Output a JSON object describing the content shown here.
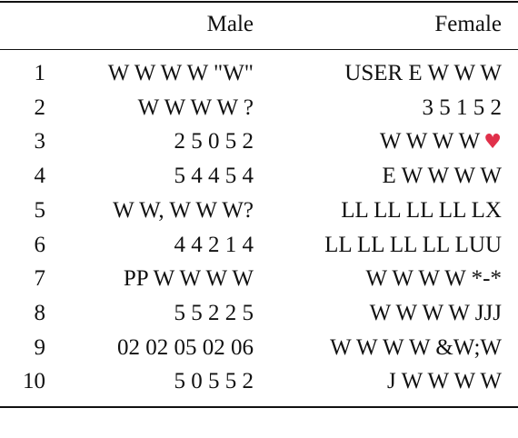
{
  "table": {
    "headers": {
      "index": "",
      "male": "Male",
      "female": "Female"
    },
    "rows": [
      {
        "index": "1",
        "male": "W W W W \"W\"",
        "female": "USER E W W W",
        "female_emoji": ""
      },
      {
        "index": "2",
        "male": "W W W W ?",
        "female": "3 5 1 5 2",
        "female_emoji": ""
      },
      {
        "index": "3",
        "male": "2 5 0 5 2",
        "female": "W W W W",
        "female_emoji": "♥"
      },
      {
        "index": "4",
        "male": "5 4 4 5 4",
        "female": "E W W W W",
        "female_emoji": ""
      },
      {
        "index": "5",
        "male": "W W, W W W?",
        "female": "LL LL LL LL LX",
        "female_emoji": ""
      },
      {
        "index": "6",
        "male": "4 4 2 1 4",
        "female": "LL LL LL LL LUU",
        "female_emoji": ""
      },
      {
        "index": "7",
        "male": "PP W W W W",
        "female": "W W W W *-*",
        "female_emoji": ""
      },
      {
        "index": "8",
        "male": "5 5 2 2 5",
        "female": "W W W W JJJ",
        "female_emoji": ""
      },
      {
        "index": "9",
        "male": "02 02 05 02 06",
        "female": "W W W W &W;W",
        "female_emoji": ""
      },
      {
        "index": "10",
        "male": "5 0 5 5 2",
        "female": "J W W W W",
        "female_emoji": ""
      }
    ],
    "colors": {
      "text": "#111111",
      "rule": "#111111",
      "heart": "#e0304a"
    }
  }
}
